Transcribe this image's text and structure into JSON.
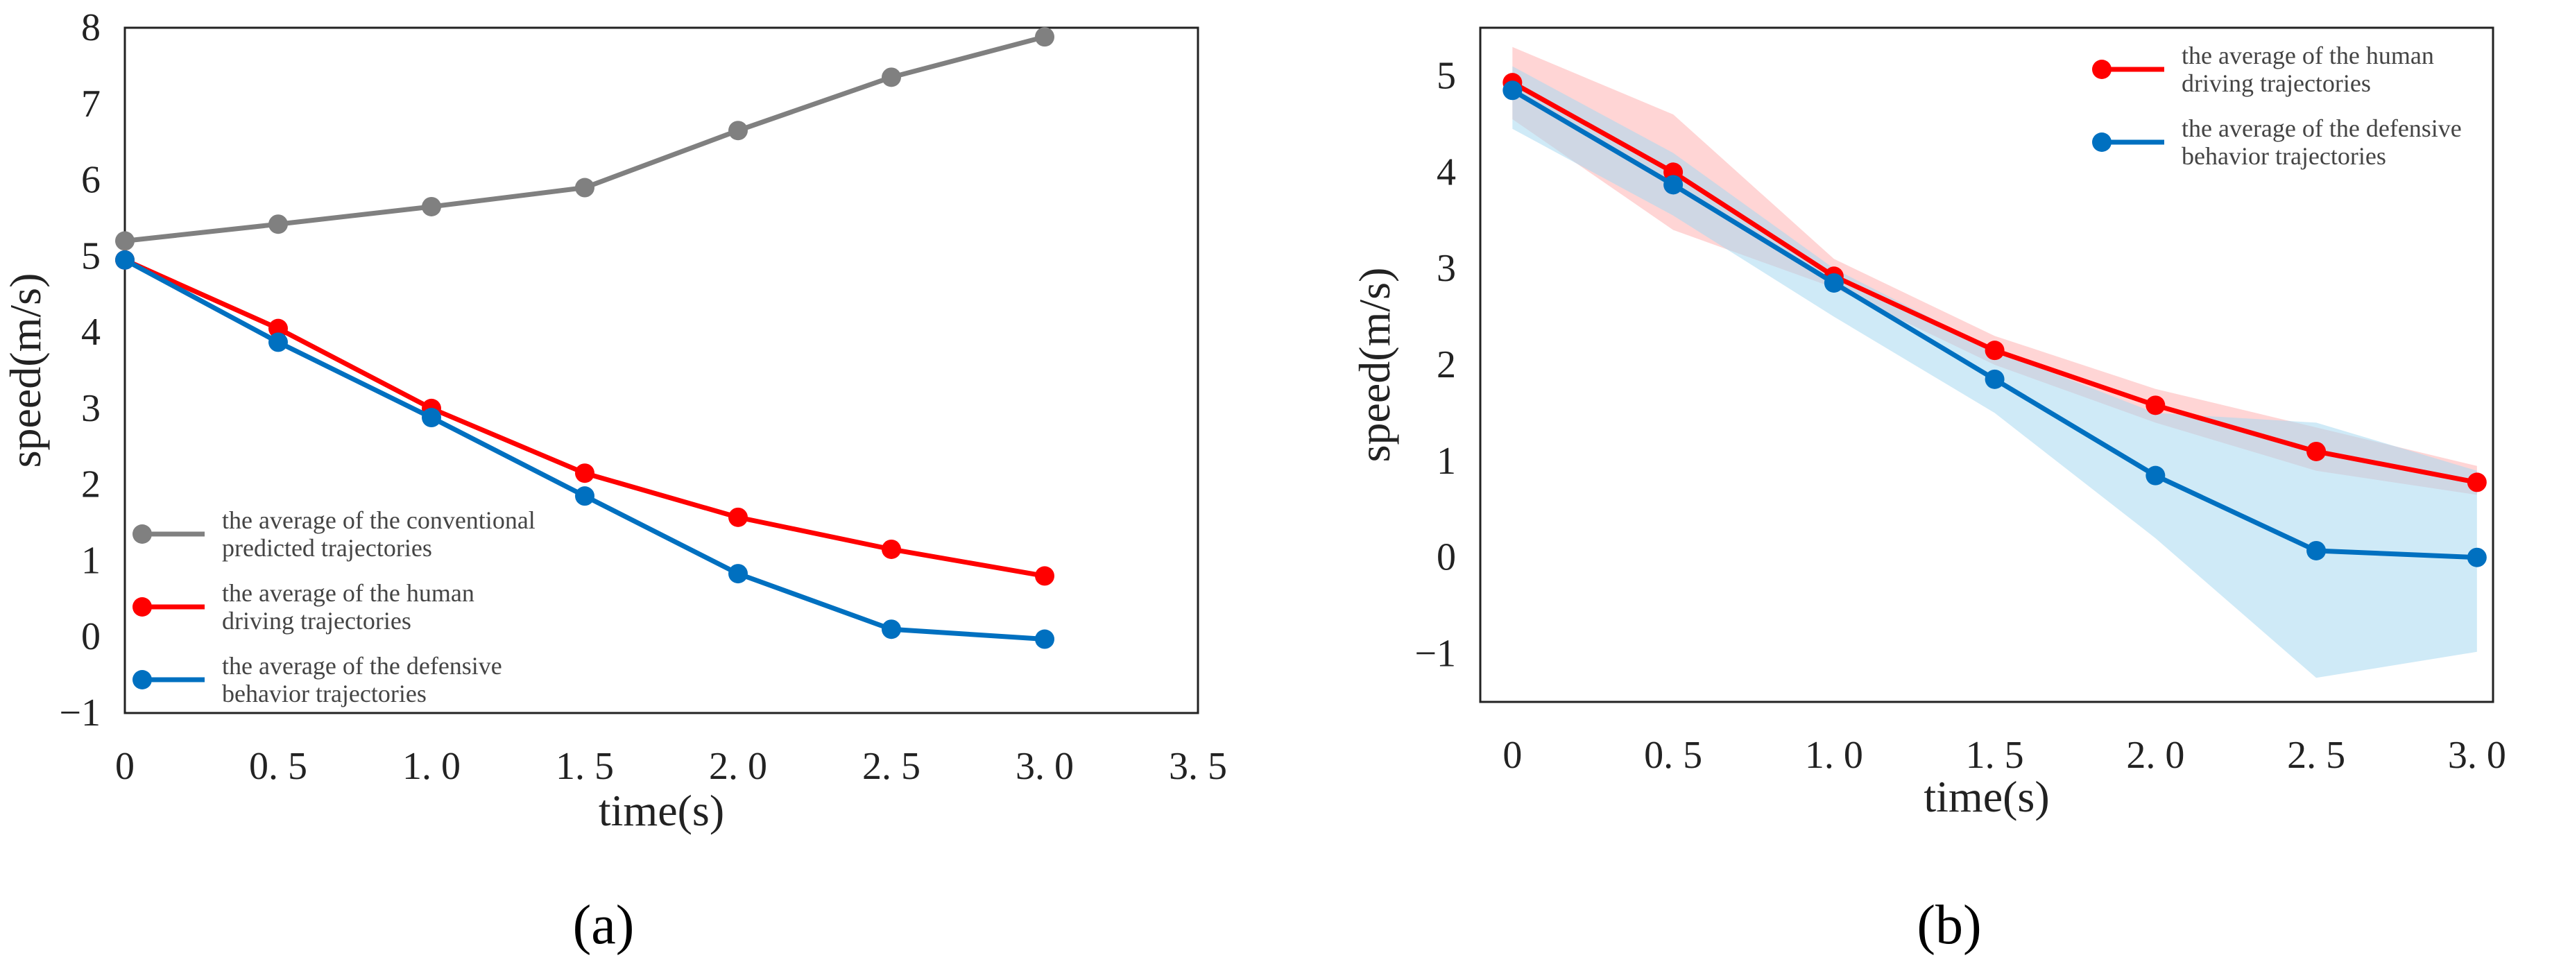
{
  "chart_data": [
    {
      "type": "line",
      "panel_label": "(a)",
      "xlabel": "time(s)",
      "ylabel": "speed(m/s)",
      "xlim": [
        0,
        3.5
      ],
      "ylim": [
        -1,
        8
      ],
      "xticks": [
        0,
        0.5,
        1.0,
        1.5,
        2.0,
        2.5,
        3.0,
        3.5
      ],
      "xtick_labels": [
        "0",
        "0. 5",
        "1. 0",
        "1. 5",
        "2. 0",
        "2. 5",
        "3. 0",
        "3. 5"
      ],
      "yticks": [
        -1,
        0,
        1,
        2,
        3,
        4,
        5,
        6,
        7,
        8
      ],
      "ytick_labels": [
        "−1",
        "0",
        "1",
        "2",
        "3",
        "4",
        "5",
        "6",
        "7",
        "8"
      ],
      "grid": false,
      "legend_position": "bottom-left",
      "x": [
        0,
        0.5,
        1.0,
        1.5,
        2.0,
        2.5,
        3.0
      ],
      "series": [
        {
          "name": "conventional",
          "legend_lines": [
            "the average of the conventional",
            "predicted trajectories"
          ],
          "color": "#808080",
          "values": [
            5.2,
            5.42,
            5.65,
            5.9,
            6.65,
            7.35,
            7.88
          ]
        },
        {
          "name": "human",
          "legend_lines": [
            "the average of the human",
            "driving trajectories"
          ],
          "color": "#ff0000",
          "values": [
            4.95,
            4.05,
            3.0,
            2.15,
            1.57,
            1.15,
            0.8
          ]
        },
        {
          "name": "defensive",
          "legend_lines": [
            "the average of the defensive",
            "behavior trajectories"
          ],
          "color": "#0070c0",
          "values": [
            4.95,
            3.87,
            2.88,
            1.85,
            0.83,
            0.1,
            -0.03
          ]
        }
      ]
    },
    {
      "type": "line",
      "panel_label": "(b)",
      "xlabel": "time(s)",
      "ylabel": "speed(m/s)",
      "xlim": [
        -0.1,
        3.05
      ],
      "ylim": [
        -1.5,
        5.5
      ],
      "xticks": [
        0,
        0.5,
        1.0,
        1.5,
        2.0,
        2.5,
        3.0
      ],
      "xtick_labels": [
        "0",
        "0. 5",
        "1. 0",
        "1. 5",
        "2. 0",
        "2. 5",
        "3. 0"
      ],
      "yticks": [
        -1,
        0,
        1,
        2,
        3,
        4,
        5
      ],
      "ytick_labels": [
        "−1",
        "0",
        "1",
        "2",
        "3",
        "4",
        "5"
      ],
      "grid": false,
      "legend_position": "top-right",
      "x": [
        0,
        0.5,
        1.0,
        1.5,
        2.0,
        2.5,
        3.0
      ],
      "series": [
        {
          "name": "human",
          "legend_lines": [
            "the average of the human",
            "driving trajectories"
          ],
          "color": "#ff0000",
          "band_color": "#ffb3b3",
          "values": [
            4.93,
            4.0,
            2.92,
            2.15,
            1.58,
            1.1,
            0.78
          ],
          "lower": [
            4.55,
            3.4,
            2.8,
            2.0,
            1.4,
            0.9,
            0.65
          ],
          "upper": [
            5.3,
            4.6,
            3.1,
            2.3,
            1.75,
            1.35,
            0.95
          ]
        },
        {
          "name": "defensive",
          "legend_lines": [
            "the average of the defensive",
            "behavior trajectories"
          ],
          "color": "#0070c0",
          "band_color": "#a8d8f0",
          "values": [
            4.85,
            3.87,
            2.85,
            1.85,
            0.85,
            0.07,
            0.0
          ],
          "lower": [
            4.45,
            3.55,
            2.5,
            1.5,
            0.2,
            -1.25,
            -0.98
          ],
          "upper": [
            5.1,
            4.2,
            3.0,
            2.15,
            1.5,
            1.4,
            0.9
          ]
        }
      ]
    }
  ]
}
